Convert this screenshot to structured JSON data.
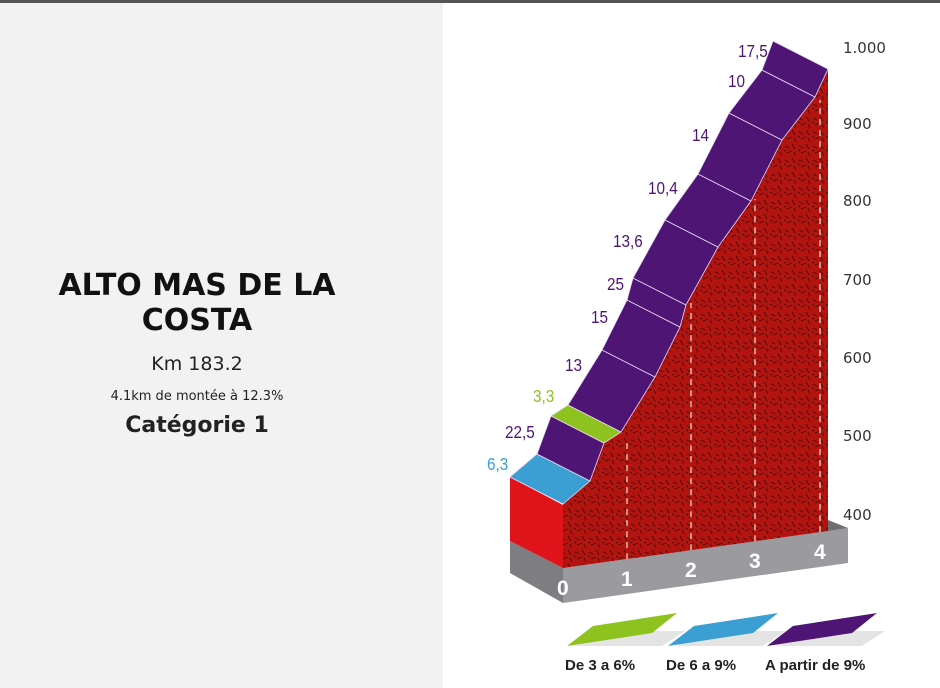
{
  "climb": {
    "title": "ALTO MAS DE LA COSTA",
    "km": "Km 183.2",
    "summary": "4.1km de montée à 12.3%",
    "category": "Catégorie 1"
  },
  "profile": {
    "altitude_labels": [
      "1.000",
      "900",
      "800",
      "700",
      "600",
      "500",
      "400"
    ],
    "km_labels": [
      "0",
      "1",
      "2",
      "3",
      "4"
    ],
    "segments": [
      {
        "gradient": "6,3",
        "class": "6-9"
      },
      {
        "gradient": "22,5",
        "class": "9+"
      },
      {
        "gradient": "3,3",
        "class": "3-6"
      },
      {
        "gradient": "13",
        "class": "9+"
      },
      {
        "gradient": "15",
        "class": "9+"
      },
      {
        "gradient": "25",
        "class": "9+"
      },
      {
        "gradient": "13,6",
        "class": "9+"
      },
      {
        "gradient": "10,4",
        "class": "9+"
      },
      {
        "gradient": "14",
        "class": "9+"
      },
      {
        "gradient": "10",
        "class": "9+"
      },
      {
        "gradient": "17,5",
        "class": "9+"
      }
    ],
    "legend": [
      {
        "label": "De 3 a 6%",
        "color": "#8dc21f"
      },
      {
        "label": "De 6 a 9%",
        "color": "#3b9fd3"
      },
      {
        "label": "A partir de 9%",
        "color": "#4f1575"
      }
    ],
    "colors": {
      "3-6": "#8dc21f",
      "6-9": "#3b9fd3",
      "9+": "#4f1575",
      "terrain": "#b3140f",
      "base": "#9b9b9f",
      "front": "#e0131a"
    }
  }
}
